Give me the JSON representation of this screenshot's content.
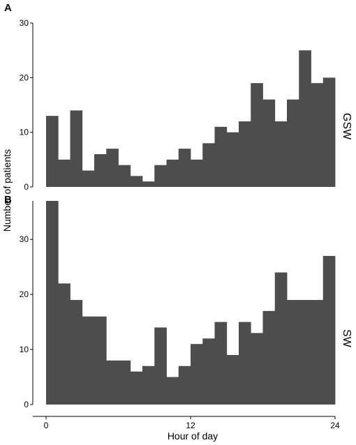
{
  "colors": {
    "bar": "#4d4d4d",
    "axis": "#000000",
    "background": "#ffffff"
  },
  "chart_data": {
    "type": "bar",
    "xlabel": "Hour of day",
    "ylabel": "Number of patients",
    "xlim": [
      0,
      24
    ],
    "xticks": [
      0,
      12,
      24
    ],
    "bin_width": 1,
    "grid": false,
    "legend": "none",
    "panels": [
      {
        "letter": "A",
        "strip_label": "GSW",
        "ylim": [
          0,
          30
        ],
        "yticks": [
          0,
          10,
          20,
          30
        ],
        "bins_start": [
          0,
          1,
          2,
          3,
          4,
          5,
          6,
          7,
          8,
          9,
          10,
          11,
          12,
          13,
          14,
          15,
          16,
          17,
          18,
          19,
          20,
          21,
          22,
          23
        ],
        "values": [
          13,
          5,
          14,
          3,
          6,
          7,
          4,
          2,
          1,
          4,
          5,
          7,
          5,
          8,
          11,
          10,
          12,
          19,
          16,
          12,
          16,
          25,
          19,
          20
        ]
      },
      {
        "letter": "B",
        "strip_label": "SW",
        "ylim": [
          0,
          37
        ],
        "yticks": [
          0,
          10,
          20,
          30
        ],
        "bins_start": [
          0,
          1,
          2,
          3,
          4,
          5,
          6,
          7,
          8,
          9,
          10,
          11,
          12,
          13,
          14,
          15,
          16,
          17,
          18,
          19,
          20,
          21,
          22,
          23
        ],
        "values": [
          37,
          22,
          19,
          16,
          16,
          8,
          8,
          6,
          7,
          14,
          5,
          7,
          11,
          12,
          15,
          9,
          15,
          13,
          17,
          24,
          19,
          19,
          19,
          27
        ]
      }
    ]
  }
}
